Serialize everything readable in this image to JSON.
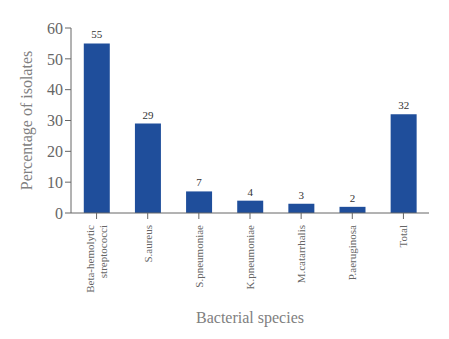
{
  "chart_data": {
    "type": "bar",
    "categories": [
      "Beta-hemolytic\nstreptococci",
      "S.aureus",
      "S.pneumoniae",
      "K.pneumoniae",
      "M.catarrhalis",
      "P.aeruginosa",
      "Total"
    ],
    "values": [
      55,
      29,
      7,
      4,
      3,
      2,
      32
    ],
    "color": "#1F4E9B",
    "xlabel": "Bacterial species",
    "ylabel": "Percentage of isolates",
    "ylim": [
      0,
      60
    ],
    "yticks": [
      0,
      10,
      20,
      30,
      40,
      50,
      60
    ],
    "data_labels": true,
    "grid": false
  }
}
